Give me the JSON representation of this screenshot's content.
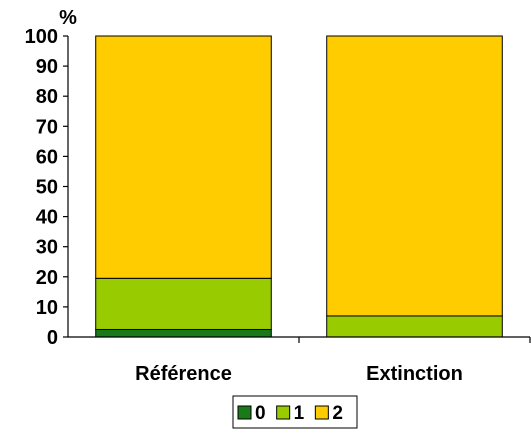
{
  "chart_data": {
    "type": "bar",
    "stacked": true,
    "categories": [
      "Référence",
      "Extinction"
    ],
    "series": [
      {
        "name": "0",
        "values": [
          2.5,
          0
        ],
        "color": "#1a7a1a"
      },
      {
        "name": "1",
        "values": [
          17.0,
          7.0
        ],
        "color": "#99cc00"
      },
      {
        "name": "2",
        "values": [
          80.5,
          93.0
        ],
        "color": "#ffcc00"
      }
    ],
    "ylabel": "%",
    "ylim": [
      0,
      100
    ],
    "yticks": [
      0,
      10,
      20,
      30,
      40,
      50,
      60,
      70,
      80,
      90,
      100
    ],
    "grid": false,
    "legend_position": "bottom"
  }
}
